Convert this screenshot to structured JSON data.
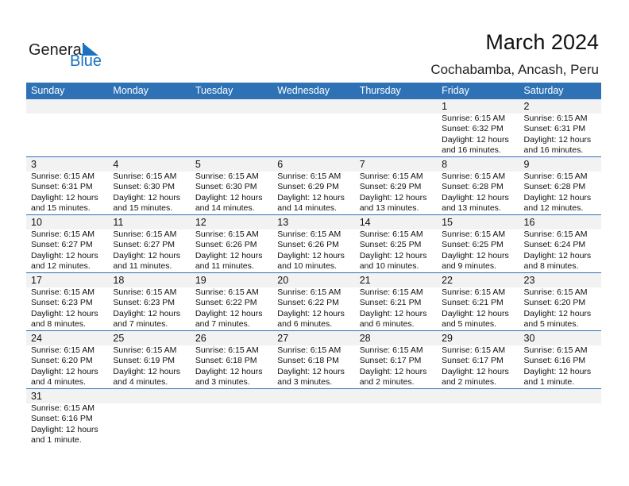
{
  "logo": {
    "text_general": "General",
    "text_blue": "Blue"
  },
  "header": {
    "title": "March 2024",
    "location": "Cochabamba, Ancash, Peru"
  },
  "colors": {
    "accent": "#2e72b5",
    "band": "#f2f2f2"
  },
  "weekdays": [
    "Sunday",
    "Monday",
    "Tuesday",
    "Wednesday",
    "Thursday",
    "Friday",
    "Saturday"
  ],
  "weeks": [
    [
      null,
      null,
      null,
      null,
      null,
      {
        "day": "1",
        "sunrise": "Sunrise: 6:15 AM",
        "sunset": "Sunset: 6:32 PM",
        "daylight": "Daylight: 12 hours",
        "minutes": "and 16 minutes."
      },
      {
        "day": "2",
        "sunrise": "Sunrise: 6:15 AM",
        "sunset": "Sunset: 6:31 PM",
        "daylight": "Daylight: 12 hours",
        "minutes": "and 16 minutes."
      }
    ],
    [
      {
        "day": "3",
        "sunrise": "Sunrise: 6:15 AM",
        "sunset": "Sunset: 6:31 PM",
        "daylight": "Daylight: 12 hours",
        "minutes": "and 15 minutes."
      },
      {
        "day": "4",
        "sunrise": "Sunrise: 6:15 AM",
        "sunset": "Sunset: 6:30 PM",
        "daylight": "Daylight: 12 hours",
        "minutes": "and 15 minutes."
      },
      {
        "day": "5",
        "sunrise": "Sunrise: 6:15 AM",
        "sunset": "Sunset: 6:30 PM",
        "daylight": "Daylight: 12 hours",
        "minutes": "and 14 minutes."
      },
      {
        "day": "6",
        "sunrise": "Sunrise: 6:15 AM",
        "sunset": "Sunset: 6:29 PM",
        "daylight": "Daylight: 12 hours",
        "minutes": "and 14 minutes."
      },
      {
        "day": "7",
        "sunrise": "Sunrise: 6:15 AM",
        "sunset": "Sunset: 6:29 PM",
        "daylight": "Daylight: 12 hours",
        "minutes": "and 13 minutes."
      },
      {
        "day": "8",
        "sunrise": "Sunrise: 6:15 AM",
        "sunset": "Sunset: 6:28 PM",
        "daylight": "Daylight: 12 hours",
        "minutes": "and 13 minutes."
      },
      {
        "day": "9",
        "sunrise": "Sunrise: 6:15 AM",
        "sunset": "Sunset: 6:28 PM",
        "daylight": "Daylight: 12 hours",
        "minutes": "and 12 minutes."
      }
    ],
    [
      {
        "day": "10",
        "sunrise": "Sunrise: 6:15 AM",
        "sunset": "Sunset: 6:27 PM",
        "daylight": "Daylight: 12 hours",
        "minutes": "and 12 minutes."
      },
      {
        "day": "11",
        "sunrise": "Sunrise: 6:15 AM",
        "sunset": "Sunset: 6:27 PM",
        "daylight": "Daylight: 12 hours",
        "minutes": "and 11 minutes."
      },
      {
        "day": "12",
        "sunrise": "Sunrise: 6:15 AM",
        "sunset": "Sunset: 6:26 PM",
        "daylight": "Daylight: 12 hours",
        "minutes": "and 11 minutes."
      },
      {
        "day": "13",
        "sunrise": "Sunrise: 6:15 AM",
        "sunset": "Sunset: 6:26 PM",
        "daylight": "Daylight: 12 hours",
        "minutes": "and 10 minutes."
      },
      {
        "day": "14",
        "sunrise": "Sunrise: 6:15 AM",
        "sunset": "Sunset: 6:25 PM",
        "daylight": "Daylight: 12 hours",
        "minutes": "and 10 minutes."
      },
      {
        "day": "15",
        "sunrise": "Sunrise: 6:15 AM",
        "sunset": "Sunset: 6:25 PM",
        "daylight": "Daylight: 12 hours",
        "minutes": "and 9 minutes."
      },
      {
        "day": "16",
        "sunrise": "Sunrise: 6:15 AM",
        "sunset": "Sunset: 6:24 PM",
        "daylight": "Daylight: 12 hours",
        "minutes": "and 8 minutes."
      }
    ],
    [
      {
        "day": "17",
        "sunrise": "Sunrise: 6:15 AM",
        "sunset": "Sunset: 6:23 PM",
        "daylight": "Daylight: 12 hours",
        "minutes": "and 8 minutes."
      },
      {
        "day": "18",
        "sunrise": "Sunrise: 6:15 AM",
        "sunset": "Sunset: 6:23 PM",
        "daylight": "Daylight: 12 hours",
        "minutes": "and 7 minutes."
      },
      {
        "day": "19",
        "sunrise": "Sunrise: 6:15 AM",
        "sunset": "Sunset: 6:22 PM",
        "daylight": "Daylight: 12 hours",
        "minutes": "and 7 minutes."
      },
      {
        "day": "20",
        "sunrise": "Sunrise: 6:15 AM",
        "sunset": "Sunset: 6:22 PM",
        "daylight": "Daylight: 12 hours",
        "minutes": "and 6 minutes."
      },
      {
        "day": "21",
        "sunrise": "Sunrise: 6:15 AM",
        "sunset": "Sunset: 6:21 PM",
        "daylight": "Daylight: 12 hours",
        "minutes": "and 6 minutes."
      },
      {
        "day": "22",
        "sunrise": "Sunrise: 6:15 AM",
        "sunset": "Sunset: 6:21 PM",
        "daylight": "Daylight: 12 hours",
        "minutes": "and 5 minutes."
      },
      {
        "day": "23",
        "sunrise": "Sunrise: 6:15 AM",
        "sunset": "Sunset: 6:20 PM",
        "daylight": "Daylight: 12 hours",
        "minutes": "and 5 minutes."
      }
    ],
    [
      {
        "day": "24",
        "sunrise": "Sunrise: 6:15 AM",
        "sunset": "Sunset: 6:20 PM",
        "daylight": "Daylight: 12 hours",
        "minutes": "and 4 minutes."
      },
      {
        "day": "25",
        "sunrise": "Sunrise: 6:15 AM",
        "sunset": "Sunset: 6:19 PM",
        "daylight": "Daylight: 12 hours",
        "minutes": "and 4 minutes."
      },
      {
        "day": "26",
        "sunrise": "Sunrise: 6:15 AM",
        "sunset": "Sunset: 6:18 PM",
        "daylight": "Daylight: 12 hours",
        "minutes": "and 3 minutes."
      },
      {
        "day": "27",
        "sunrise": "Sunrise: 6:15 AM",
        "sunset": "Sunset: 6:18 PM",
        "daylight": "Daylight: 12 hours",
        "minutes": "and 3 minutes."
      },
      {
        "day": "28",
        "sunrise": "Sunrise: 6:15 AM",
        "sunset": "Sunset: 6:17 PM",
        "daylight": "Daylight: 12 hours",
        "minutes": "and 2 minutes."
      },
      {
        "day": "29",
        "sunrise": "Sunrise: 6:15 AM",
        "sunset": "Sunset: 6:17 PM",
        "daylight": "Daylight: 12 hours",
        "minutes": "and 2 minutes."
      },
      {
        "day": "30",
        "sunrise": "Sunrise: 6:15 AM",
        "sunset": "Sunset: 6:16 PM",
        "daylight": "Daylight: 12 hours",
        "minutes": "and 1 minute."
      }
    ],
    [
      {
        "day": "31",
        "sunrise": "Sunrise: 6:15 AM",
        "sunset": "Sunset: 6:16 PM",
        "daylight": "Daylight: 12 hours",
        "minutes": "and 1 minute."
      },
      null,
      null,
      null,
      null,
      null,
      null
    ]
  ]
}
